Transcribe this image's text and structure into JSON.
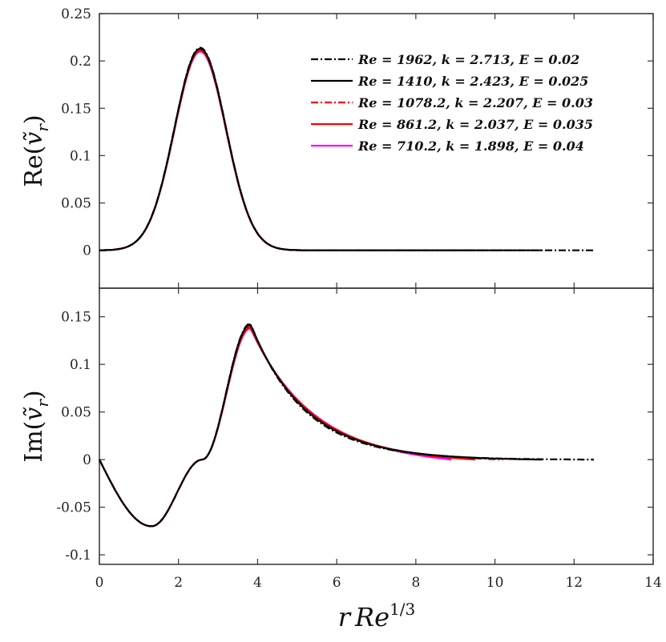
{
  "chart_data": {
    "type": "line",
    "xlabel": "rRe^{1/3}",
    "xlabel_parts": {
      "r": "r",
      "re": "Re",
      "exp": "1/3"
    },
    "xlim": [
      0,
      14
    ],
    "xticks": [
      "0",
      "2",
      "4",
      "6",
      "8",
      "10",
      "12",
      "14"
    ],
    "legend_position": "top-right",
    "series": [
      {
        "name": "Re = 1962, k = 2.713, E = 0.02",
        "color": "#000000",
        "style": "dashdot",
        "x_end": 12.5
      },
      {
        "name": "Re = 1410, k = 2.423, E = 0.025",
        "color": "#000000",
        "style": "solid",
        "x_end": 11.2
      },
      {
        "name": "Re = 1078.2, k = 2.207, E = 0.03",
        "color": "#ff0000",
        "style": "dashdot",
        "x_end": 10.2
      },
      {
        "name": "Re = 861.2, k = 2.037, E = 0.035",
        "color": "#ff0000",
        "style": "solid",
        "x_end": 9.5
      },
      {
        "name": "Re = 710.2, k = 1.898, E = 0.04",
        "color": "#ff00ff",
        "style": "solid",
        "x_end": 8.9
      }
    ],
    "panels": [
      {
        "id": "top",
        "ylabel": "Re(ṽ_r)",
        "ylabel_func": "Re",
        "ylim": [
          -0.04,
          0.25
        ],
        "yticks": [
          "0.25",
          "0.2",
          "0.15",
          "0.1",
          "0.05",
          "0"
        ],
        "ytick_values": [
          0.25,
          0.2,
          0.15,
          0.1,
          0.05,
          0
        ],
        "shape": {
          "type": "gaussian",
          "peak_x": 2.55,
          "peak_y": 0.214,
          "width": 0.92
        },
        "peak_values": [
          0.214,
          0.213,
          0.212,
          0.211,
          0.21
        ]
      },
      {
        "id": "bottom",
        "ylabel": "Im(ṽ_r)",
        "ylabel_func": "Im",
        "ylim": [
          -0.11,
          0.18
        ],
        "yticks": [
          "0.15",
          "0.1",
          "0.05",
          "0",
          "-0.05",
          "-0.1"
        ],
        "ytick_values": [
          0.15,
          0.1,
          0.05,
          0,
          -0.05,
          -0.1
        ],
        "shape": {
          "type": "oscillating",
          "min_x": 1.32,
          "min_y": -0.07,
          "zero_x": 2.6,
          "peak_x": 3.82
        },
        "peak_values": [
          0.143,
          0.142,
          0.14,
          0.139,
          0.138
        ],
        "end_values": [
          0.0,
          0.0,
          0.0,
          0.0,
          0.0
        ]
      }
    ]
  }
}
